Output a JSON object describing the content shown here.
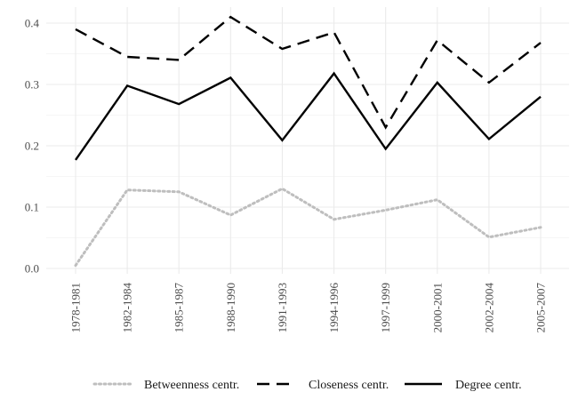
{
  "chart_data": {
    "type": "line",
    "title": "",
    "xlabel": "",
    "ylabel": "",
    "categories": [
      "1978-1981",
      "1982-1984",
      "1985-1987",
      "1988-1990",
      "1991-1993",
      "1994-1996",
      "1997-1999",
      "2000-2001",
      "2002-2004",
      "2005-2007"
    ],
    "ylim": [
      -0.01,
      0.425
    ],
    "yticks": [
      0.0,
      0.1,
      0.2,
      0.3,
      0.4
    ],
    "ytick_labels": [
      "0.0",
      "0.1",
      "0.2",
      "0.3",
      "0.4"
    ],
    "grid": true,
    "legend_position": "bottom",
    "series": [
      {
        "name": "Betweenness centr.",
        "style": "dotted",
        "color": "#bebebe",
        "values": [
          0.005,
          0.128,
          0.125,
          0.087,
          0.13,
          0.08,
          0.095,
          0.112,
          0.051,
          0.067
        ]
      },
      {
        "name": "Closeness centr.",
        "style": "dashed",
        "color": "#000000",
        "values": [
          0.39,
          0.345,
          0.34,
          0.41,
          0.358,
          0.385,
          0.23,
          0.372,
          0.303,
          0.368
        ]
      },
      {
        "name": "Degree centr.",
        "style": "solid",
        "color": "#000000",
        "values": [
          0.177,
          0.298,
          0.268,
          0.311,
          0.209,
          0.318,
          0.195,
          0.303,
          0.211,
          0.28
        ]
      }
    ]
  }
}
